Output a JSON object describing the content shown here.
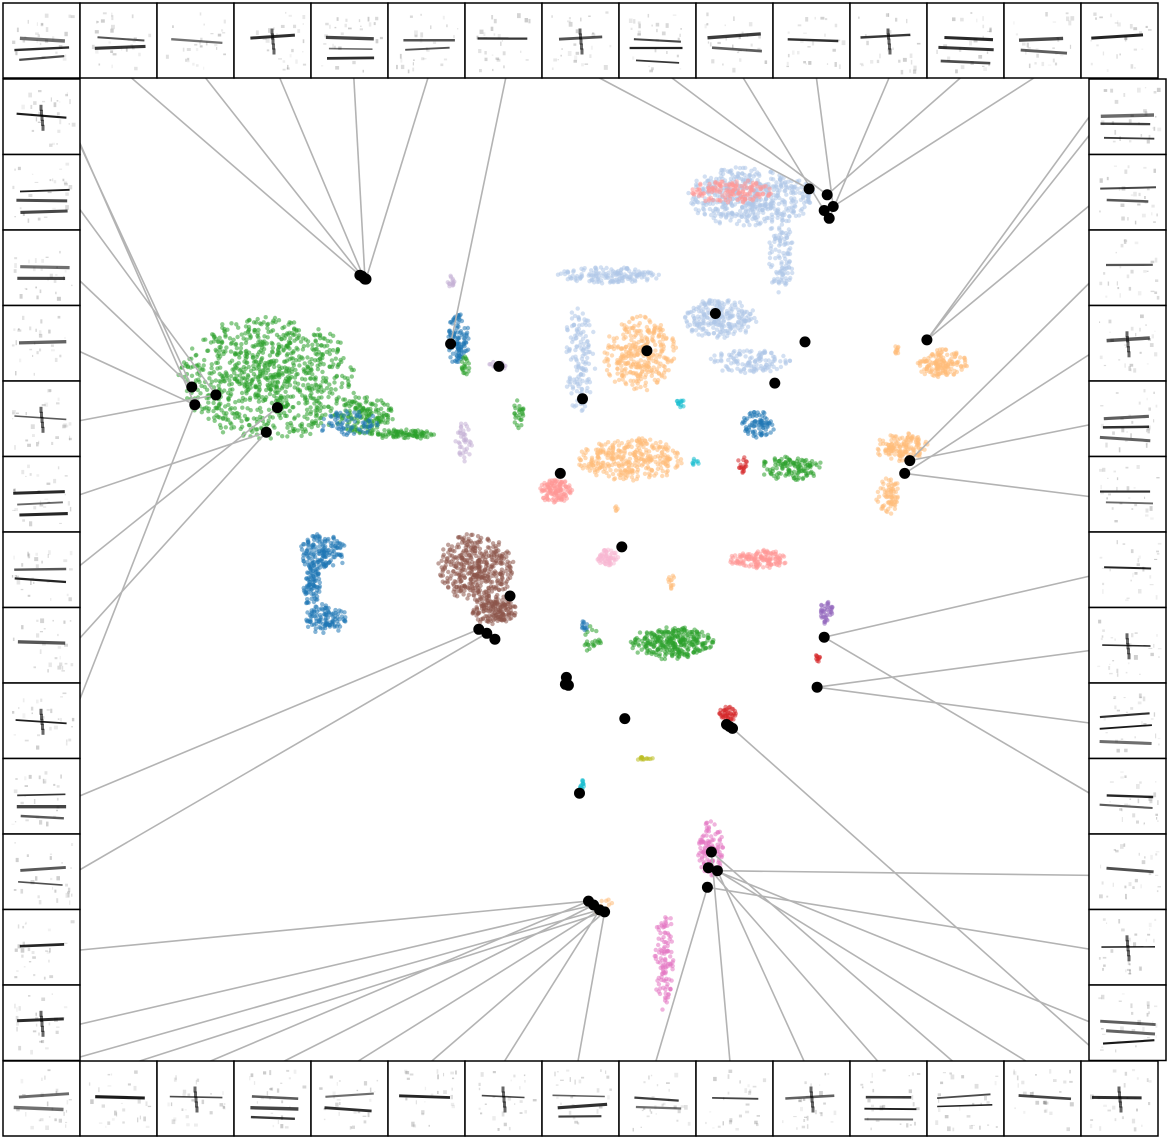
{
  "figure": {
    "title": "",
    "subtitle": ""
  },
  "chart_data": {
    "type": "scatter",
    "description_of_axes": {
      "xlabel": "",
      "ylabel": "",
      "xlim": [
        0,
        100
      ],
      "ylim": [
        0,
        100
      ],
      "ticks": "none",
      "grid": false,
      "legend": "none"
    },
    "palette": {
      "blue": "#1f77b4",
      "light_blue": "#aec7e8",
      "orange": "#ffbb78",
      "salmon": "#ff9896",
      "green": "#2ca02c",
      "brown": "#8c564b",
      "pink": "#e377c2",
      "light_pink": "#f7b6d2",
      "purple": "#9467bd",
      "lavender": "#c5b0d5",
      "red": "#d62728",
      "cyan": "#17becf",
      "olive": "#bcbd22",
      "highlight": "#000000",
      "connector": "#b3b3b3"
    },
    "clusters": [
      {
        "color": "green",
        "shape": "ellipse",
        "cx": 18.5,
        "cy": 69.5,
        "rx": 8.5,
        "ry": 6.2,
        "n": 900
      },
      {
        "color": "green",
        "shape": "ellipse",
        "cx": 28.0,
        "cy": 65.8,
        "rx": 3.0,
        "ry": 2.0,
        "n": 160
      },
      {
        "color": "blue",
        "shape": "ellipse",
        "cx": 26.5,
        "cy": 64.8,
        "rx": 3.0,
        "ry": 1.4,
        "n": 70
      },
      {
        "color": "green",
        "shape": "ellipse",
        "cx": 32.0,
        "cy": 63.8,
        "rx": 3.2,
        "ry": 0.5,
        "n": 90
      },
      {
        "color": "blue",
        "shape": "ellipse",
        "cx": 24.0,
        "cy": 51.8,
        "rx": 2.3,
        "ry": 1.9,
        "n": 150
      },
      {
        "color": "blue",
        "shape": "ellipse",
        "cx": 22.9,
        "cy": 48.2,
        "rx": 0.8,
        "ry": 2.6,
        "n": 90
      },
      {
        "color": "blue",
        "shape": "ellipse",
        "cx": 24.3,
        "cy": 45.0,
        "rx": 2.0,
        "ry": 1.5,
        "n": 110
      },
      {
        "color": "brown",
        "shape": "ellipse",
        "cx": 39.2,
        "cy": 50.2,
        "rx": 3.6,
        "ry": 3.4,
        "n": 420
      },
      {
        "color": "brown",
        "shape": "ellipse",
        "cx": 41.0,
        "cy": 45.8,
        "rx": 2.2,
        "ry": 1.5,
        "n": 170
      },
      {
        "color": "blue",
        "shape": "ellipse",
        "cx": 37.5,
        "cy": 73.5,
        "rx": 1.0,
        "ry": 2.8,
        "n": 110
      },
      {
        "color": "green",
        "shape": "ellipse",
        "cx": 38.2,
        "cy": 70.8,
        "rx": 0.5,
        "ry": 1.0,
        "n": 20
      },
      {
        "color": "lavender",
        "shape": "ellipse",
        "cx": 36.8,
        "cy": 79.4,
        "rx": 0.4,
        "ry": 0.6,
        "n": 14
      },
      {
        "color": "lavender",
        "shape": "ellipse",
        "cx": 38.0,
        "cy": 63.0,
        "rx": 0.8,
        "ry": 2.0,
        "n": 40
      },
      {
        "color": "lavender",
        "shape": "ellipse",
        "cx": 41.4,
        "cy": 70.8,
        "rx": 0.9,
        "ry": 0.4,
        "n": 14
      },
      {
        "color": "green",
        "shape": "ellipse",
        "cx": 43.5,
        "cy": 65.9,
        "rx": 0.6,
        "ry": 1.5,
        "n": 25
      },
      {
        "color": "salmon",
        "shape": "ellipse",
        "cx": 47.2,
        "cy": 58.0,
        "rx": 1.6,
        "ry": 1.2,
        "n": 120
      },
      {
        "color": "light_blue",
        "shape": "ellipse",
        "cx": 52.5,
        "cy": 80.0,
        "rx": 5.0,
        "ry": 0.8,
        "n": 150
      },
      {
        "color": "light_blue",
        "shape": "ellipse",
        "cx": 49.5,
        "cy": 71.5,
        "rx": 1.5,
        "ry": 5.5,
        "n": 140
      },
      {
        "color": "orange",
        "shape": "ellipse",
        "cx": 55.5,
        "cy": 72.0,
        "rx": 3.5,
        "ry": 3.7,
        "n": 320
      },
      {
        "color": "orange",
        "shape": "ellipse",
        "cx": 54.5,
        "cy": 61.2,
        "rx": 5.0,
        "ry": 2.2,
        "n": 320
      },
      {
        "color": "cyan",
        "shape": "ellipse",
        "cx": 59.5,
        "cy": 67.0,
        "rx": 0.4,
        "ry": 0.6,
        "n": 12
      },
      {
        "color": "cyan",
        "shape": "ellipse",
        "cx": 61.0,
        "cy": 61.0,
        "rx": 0.4,
        "ry": 0.4,
        "n": 8
      },
      {
        "color": "light_pink",
        "shape": "ellipse",
        "cx": 52.3,
        "cy": 51.2,
        "rx": 1.0,
        "ry": 0.8,
        "n": 60
      },
      {
        "color": "orange",
        "shape": "ellipse",
        "cx": 58.6,
        "cy": 48.8,
        "rx": 0.3,
        "ry": 0.9,
        "n": 12
      },
      {
        "color": "orange",
        "shape": "ellipse",
        "cx": 53.2,
        "cy": 56.2,
        "rx": 0.2,
        "ry": 0.3,
        "n": 5
      },
      {
        "color": "green",
        "shape": "ellipse",
        "cx": 58.7,
        "cy": 42.5,
        "rx": 4.0,
        "ry": 1.6,
        "n": 300
      },
      {
        "color": "light_blue",
        "shape": "ellipse",
        "cx": 66.5,
        "cy": 88.0,
        "rx": 6.0,
        "ry": 3.0,
        "n": 520
      },
      {
        "color": "salmon",
        "shape": "ellipse",
        "cx": 64.5,
        "cy": 88.5,
        "rx": 4.0,
        "ry": 1.2,
        "n": 140
      },
      {
        "color": "light_blue",
        "shape": "ellipse",
        "cx": 69.5,
        "cy": 82.0,
        "rx": 1.2,
        "ry": 4.5,
        "n": 110
      },
      {
        "color": "light_blue",
        "shape": "ellipse",
        "cx": 63.5,
        "cy": 75.6,
        "rx": 3.5,
        "ry": 2.0,
        "n": 230
      },
      {
        "color": "light_blue",
        "shape": "ellipse",
        "cx": 66.5,
        "cy": 71.2,
        "rx": 4.0,
        "ry": 1.2,
        "n": 120
      },
      {
        "color": "blue",
        "shape": "ellipse",
        "cx": 67.3,
        "cy": 64.8,
        "rx": 1.6,
        "ry": 1.3,
        "n": 80
      },
      {
        "color": "red",
        "shape": "ellipse",
        "cx": 65.7,
        "cy": 60.7,
        "rx": 0.5,
        "ry": 0.9,
        "n": 18
      },
      {
        "color": "green",
        "shape": "ellipse",
        "cx": 70.5,
        "cy": 60.3,
        "rx": 3.2,
        "ry": 1.2,
        "n": 120
      },
      {
        "color": "orange",
        "shape": "ellipse",
        "cx": 85.5,
        "cy": 71.0,
        "rx": 2.4,
        "ry": 1.4,
        "n": 150
      },
      {
        "color": "orange",
        "shape": "ellipse",
        "cx": 81.0,
        "cy": 72.3,
        "rx": 0.4,
        "ry": 0.5,
        "n": 10
      },
      {
        "color": "orange",
        "shape": "ellipse",
        "cx": 81.5,
        "cy": 62.5,
        "rx": 2.5,
        "ry": 1.5,
        "n": 140
      },
      {
        "color": "orange",
        "shape": "ellipse",
        "cx": 80.2,
        "cy": 57.5,
        "rx": 1.2,
        "ry": 1.8,
        "n": 70
      },
      {
        "color": "salmon",
        "shape": "ellipse",
        "cx": 67.3,
        "cy": 51.0,
        "rx": 2.8,
        "ry": 1.0,
        "n": 140
      },
      {
        "color": "purple",
        "shape": "ellipse",
        "cx": 74.0,
        "cy": 45.5,
        "rx": 0.8,
        "ry": 1.2,
        "n": 40
      },
      {
        "color": "red",
        "shape": "ellipse",
        "cx": 73.1,
        "cy": 41.0,
        "rx": 0.3,
        "ry": 0.5,
        "n": 10
      },
      {
        "color": "red",
        "shape": "ellipse",
        "cx": 64.2,
        "cy": 35.3,
        "rx": 0.8,
        "ry": 0.8,
        "n": 45
      },
      {
        "color": "blue",
        "shape": "ellipse",
        "cx": 50.0,
        "cy": 44.4,
        "rx": 0.3,
        "ry": 0.7,
        "n": 12
      },
      {
        "color": "green",
        "shape": "ellipse",
        "cx": 50.8,
        "cy": 42.8,
        "rx": 0.8,
        "ry": 1.8,
        "n": 22
      },
      {
        "color": "cyan",
        "shape": "ellipse",
        "cx": 49.8,
        "cy": 27.8,
        "rx": 0.3,
        "ry": 1.0,
        "n": 15
      },
      {
        "color": "olive",
        "shape": "ellipse",
        "cx": 56.0,
        "cy": 30.7,
        "rx": 0.8,
        "ry": 0.2,
        "n": 14
      },
      {
        "color": "orange",
        "shape": "ellipse",
        "cx": 51.9,
        "cy": 15.6,
        "rx": 1.2,
        "ry": 0.8,
        "n": 16
      },
      {
        "color": "pink",
        "shape": "ellipse",
        "cx": 62.5,
        "cy": 21.5,
        "rx": 1.2,
        "ry": 2.8,
        "n": 120
      },
      {
        "color": "pink",
        "shape": "ellipse",
        "cx": 58.0,
        "cy": 10.2,
        "rx": 1.0,
        "ry": 5.0,
        "n": 110
      }
    ],
    "highlighted_points": [
      {
        "x": 27.7,
        "y": 80.0
      },
      {
        "x": 27.9,
        "y": 79.9
      },
      {
        "x": 28.1,
        "y": 79.7
      },
      {
        "x": 28.2,
        "y": 79.6
      },
      {
        "x": 28.3,
        "y": 79.6
      },
      {
        "x": 36.7,
        "y": 73.0
      },
      {
        "x": 41.5,
        "y": 70.7
      },
      {
        "x": 49.8,
        "y": 67.4
      },
      {
        "x": 56.2,
        "y": 72.3
      },
      {
        "x": 63.0,
        "y": 76.1
      },
      {
        "x": 72.3,
        "y": 88.8
      },
      {
        "x": 74.1,
        "y": 88.2
      },
      {
        "x": 74.7,
        "y": 87.0
      },
      {
        "x": 73.8,
        "y": 86.6
      },
      {
        "x": 74.3,
        "y": 85.8
      },
      {
        "x": 71.9,
        "y": 73.2
      },
      {
        "x": 84.0,
        "y": 73.4
      },
      {
        "x": 68.9,
        "y": 69.0
      },
      {
        "x": 82.3,
        "y": 61.1
      },
      {
        "x": 81.8,
        "y": 59.8
      },
      {
        "x": 11.0,
        "y": 68.6
      },
      {
        "x": 11.3,
        "y": 66.8
      },
      {
        "x": 13.4,
        "y": 67.8
      },
      {
        "x": 19.5,
        "y": 66.5
      },
      {
        "x": 18.4,
        "y": 64.0
      },
      {
        "x": 47.6,
        "y": 59.8
      },
      {
        "x": 53.7,
        "y": 52.3
      },
      {
        "x": 42.6,
        "y": 47.3
      },
      {
        "x": 39.5,
        "y": 43.9
      },
      {
        "x": 40.3,
        "y": 43.5
      },
      {
        "x": 41.1,
        "y": 42.9
      },
      {
        "x": 48.2,
        "y": 39.0
      },
      {
        "x": 48.1,
        "y": 38.3
      },
      {
        "x": 48.4,
        "y": 38.2
      },
      {
        "x": 54.0,
        "y": 34.8
      },
      {
        "x": 73.8,
        "y": 43.1
      },
      {
        "x": 73.1,
        "y": 38.0
      },
      {
        "x": 64.1,
        "y": 34.2
      },
      {
        "x": 64.4,
        "y": 34.0
      },
      {
        "x": 64.7,
        "y": 33.8
      },
      {
        "x": 49.5,
        "y": 27.2
      },
      {
        "x": 62.6,
        "y": 21.2
      },
      {
        "x": 62.3,
        "y": 19.6
      },
      {
        "x": 63.2,
        "y": 19.3
      },
      {
        "x": 62.2,
        "y": 17.6
      },
      {
        "x": 50.4,
        "y": 16.2
      },
      {
        "x": 50.9,
        "y": 15.8
      },
      {
        "x": 51.5,
        "y": 15.3
      },
      {
        "x": 52.0,
        "y": 15.1
      }
    ],
    "spectrogram_panels": {
      "top_row_count": 15,
      "left_column_count": 13,
      "right_column_count": 13,
      "bottom_row_count": 15
    }
  }
}
